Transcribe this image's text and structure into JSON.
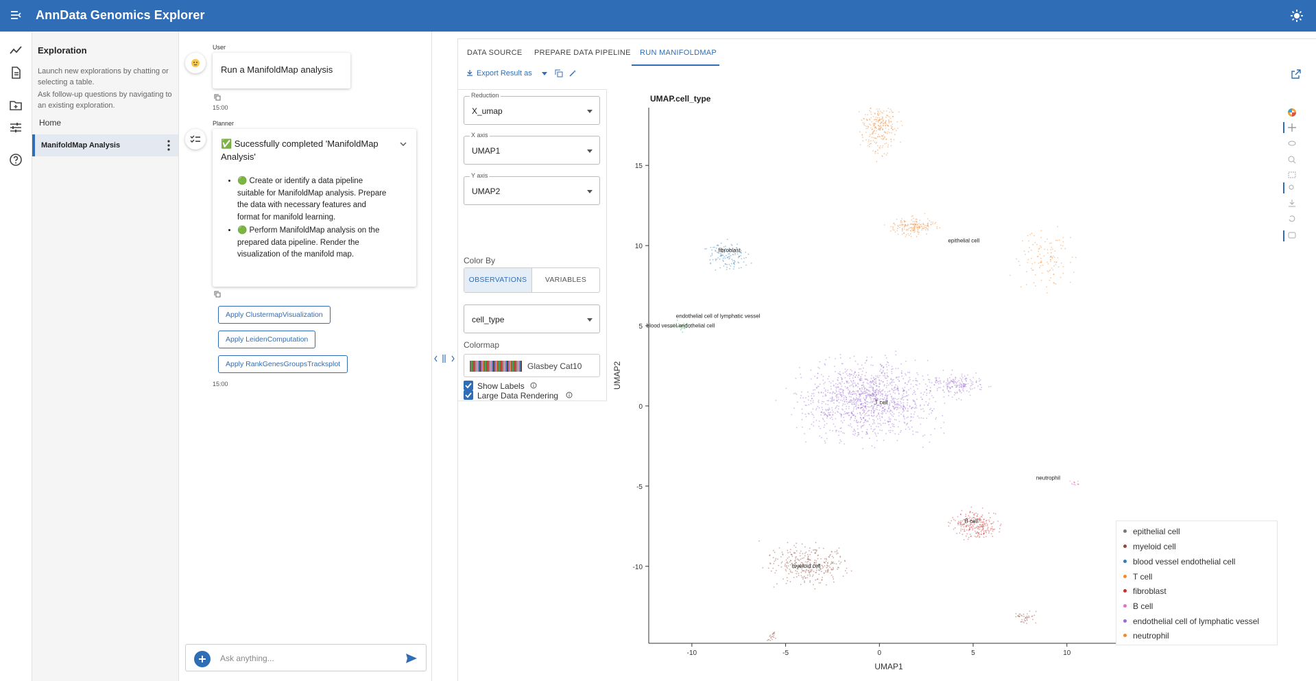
{
  "app": {
    "title": "AnnData Genomics Explorer"
  },
  "sidebar": {
    "heading": "Exploration",
    "desc1": "Launch new explorations by chatting or selecting a table.",
    "desc2": "Ask follow-up questions by navigating to an existing exploration.",
    "home": "Home",
    "active_item": "ManifoldMap Analysis"
  },
  "chat": {
    "user_label": "User",
    "user_message": "Run a ManifoldMap analysis",
    "user_time": "15:00",
    "planner_label": "Planner",
    "planner_title": "✅ Sucessfully completed 'ManifoldMap Analysis'",
    "steps": [
      "🟢 Create or identify a data pipeline suitable for ManifoldMap analysis. Prepare the data with necessary features and format for manifold learning.",
      "🟢 Perform ManifoldMap analysis on the prepared data pipeline. Render the visualization of the manifold map."
    ],
    "apply_buttons": [
      "Apply ClustermapVisualization",
      "Apply LeidenComputation",
      "Apply RankGenesGroupsTracksplot"
    ],
    "planner_time": "15:00",
    "input_placeholder": "Ask anything..."
  },
  "tabs": [
    "DATA SOURCE",
    "PREPARE DATA PIPELINE",
    "RUN MANIFOLDMAP"
  ],
  "toolbar": {
    "export_label": "Export Result as"
  },
  "controls": {
    "reduction_label": "Reduction",
    "reduction_value": "X_umap",
    "xaxis_label": "X axis",
    "xaxis_value": "UMAP1",
    "yaxis_label": "Y axis",
    "yaxis_value": "UMAP2",
    "colorby_label": "Color By",
    "colorby_options": [
      "OBSERVATIONS",
      "VARIABLES"
    ],
    "color_field_value": "cell_type",
    "colormap_label": "Colormap",
    "colormap_value": "Glasbey Cat10",
    "large_data_label": "Large Data Rendering",
    "show_labels_label": "Show Labels"
  },
  "chart_data": {
    "type": "scatter",
    "title": "UMAP.cell_type",
    "xlabel": "UMAP1",
    "ylabel": "UMAP2",
    "xlim": [
      -12.3,
      13.3
    ],
    "ylim": [
      -14.8,
      18.6
    ],
    "xticks": [
      -10,
      -5,
      0,
      5,
      10
    ],
    "yticks": [
      15,
      10,
      5,
      0,
      -5,
      -10
    ],
    "legend_position": "bottom-right",
    "legend": [
      {
        "name": "epithelial cell",
        "color": "#777777"
      },
      {
        "name": "myeloid cell",
        "color": "#8b4a3a"
      },
      {
        "name": "blood vessel endothelial cell",
        "color": "#2f7fb8"
      },
      {
        "name": "T cell",
        "color": "#f08a32"
      },
      {
        "name": "fibroblast",
        "color": "#cc2f2f"
      },
      {
        "name": "B cell",
        "color": "#d877c8"
      },
      {
        "name": "endothelial cell of lymphatic vessel",
        "color": "#9b6ad3"
      },
      {
        "name": "neutrophil",
        "color": "#f08a32"
      }
    ],
    "cluster_labels": [
      {
        "text": "epithelial cell",
        "x": 4.5,
        "y": 10.2
      },
      {
        "text": "fibroblast",
        "x": -8.0,
        "y": 9.6
      },
      {
        "text": "endothelial cell of lymphatic vessel",
        "x": -8.6,
        "y": 5.5
      },
      {
        "text": "blood vessel endothelial cell",
        "x": -10.6,
        "y": 4.9
      },
      {
        "text": "T cell",
        "x": 0.1,
        "y": 0.1
      },
      {
        "text": "neutrophil",
        "x": 9.0,
        "y": -4.6
      },
      {
        "text": "B cell",
        "x": 4.9,
        "y": -7.3
      },
      {
        "text": "myeloid cell",
        "x": -3.9,
        "y": -10.1
      }
    ],
    "clusters": [
      {
        "name": "orange-top",
        "x": 0,
        "y": 17.3,
        "sx": 0.6,
        "sy": 1.0,
        "n": 260,
        "color": "#f08a32"
      },
      {
        "name": "orange-mid",
        "x": 1.8,
        "y": 11.2,
        "sx": 0.8,
        "sy": 0.4,
        "n": 170,
        "color": "#f08a32"
      },
      {
        "name": "orange-right",
        "x": 8.8,
        "y": 9.2,
        "sx": 1.1,
        "sy": 1.4,
        "n": 120,
        "color": "#f08a32"
      },
      {
        "name": "fibroblast",
        "x": -8.1,
        "y": 9.3,
        "sx": 0.7,
        "sy": 0.6,
        "n": 120,
        "color": "#2f7fb8"
      },
      {
        "name": "lymphatic",
        "x": -10.6,
        "y": 5.0,
        "sx": 0.35,
        "sy": 0.25,
        "n": 30,
        "color": "#3aa94a"
      },
      {
        "name": "t-cell",
        "x": -0.6,
        "y": 0.4,
        "sx": 2.4,
        "sy": 1.6,
        "n": 1300,
        "color": "#9b6ad3"
      },
      {
        "name": "t-cell-arm",
        "x": 4.2,
        "y": 1.3,
        "sx": 1.0,
        "sy": 0.5,
        "n": 180,
        "color": "#9b6ad3"
      },
      {
        "name": "neutrophil",
        "x": 10.4,
        "y": -4.8,
        "sx": 0.2,
        "sy": 0.1,
        "n": 15,
        "color": "#d877c8"
      },
      {
        "name": "b-cell",
        "x": 5.1,
        "y": -7.4,
        "sx": 0.8,
        "sy": 0.6,
        "n": 230,
        "color": "#cc2f2f"
      },
      {
        "name": "myeloid",
        "x": -3.7,
        "y": -9.9,
        "sx": 1.5,
        "sy": 0.8,
        "n": 320,
        "color": "#8b4a3a"
      },
      {
        "name": "myeloid-small",
        "x": 7.8,
        "y": -13.2,
        "sx": 0.4,
        "sy": 0.3,
        "n": 40,
        "color": "#8b4a3a"
      },
      {
        "name": "myeloid-tail",
        "x": -5.7,
        "y": -14.4,
        "sx": 0.2,
        "sy": 0.2,
        "n": 20,
        "color": "#8b4a3a"
      }
    ]
  }
}
